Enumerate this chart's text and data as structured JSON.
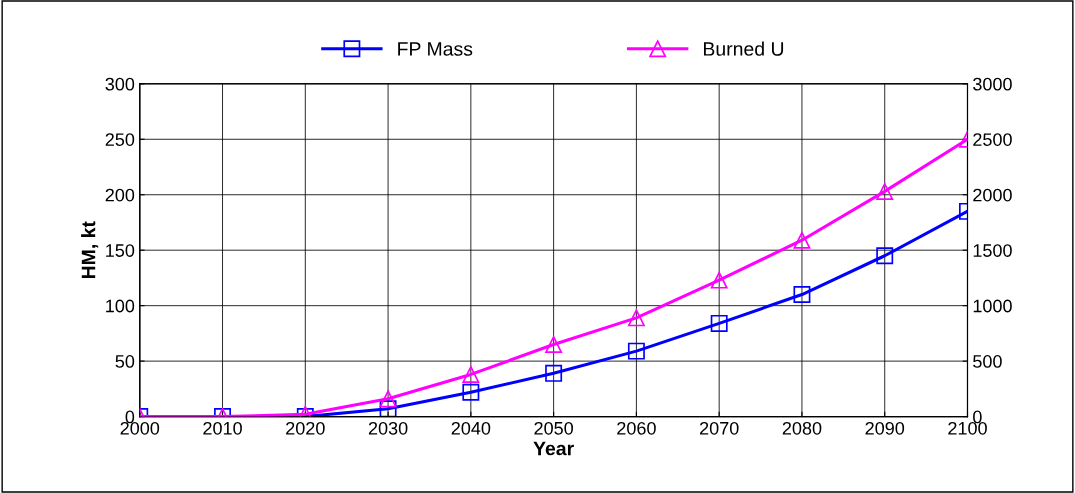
{
  "chart_data": {
    "type": "line",
    "xlabel": "Year",
    "ylabel": "HM, kt",
    "x": [
      2000,
      2010,
      2020,
      2030,
      2040,
      2050,
      2060,
      2070,
      2080,
      2090,
      2100
    ],
    "series": [
      {
        "name": "FP Mass",
        "color": "#0000ff",
        "marker": "square",
        "values": [
          0,
          0,
          0,
          7,
          22,
          39,
          59,
          84,
          110,
          145,
          185
        ]
      },
      {
        "name": "Burned U",
        "color": "#ff00ff",
        "marker": "triangle",
        "axis": "y2",
        "values": [
          0,
          0,
          20,
          160,
          380,
          650,
          890,
          1230,
          1590,
          2030,
          2500
        ]
      }
    ],
    "xlim": [
      2000,
      2100
    ],
    "xticks": [
      2000,
      2010,
      2020,
      2030,
      2040,
      2050,
      2060,
      2070,
      2080,
      2090,
      2100
    ],
    "ylim": [
      0,
      300
    ],
    "yticks": [
      0,
      50,
      100,
      150,
      200,
      250,
      300
    ],
    "y2lim": [
      0,
      3000
    ],
    "y2ticks": [
      0,
      500,
      1000,
      1500,
      2000,
      2500,
      3000
    ],
    "grid": true,
    "legend": "top",
    "line_style": "solid"
  }
}
